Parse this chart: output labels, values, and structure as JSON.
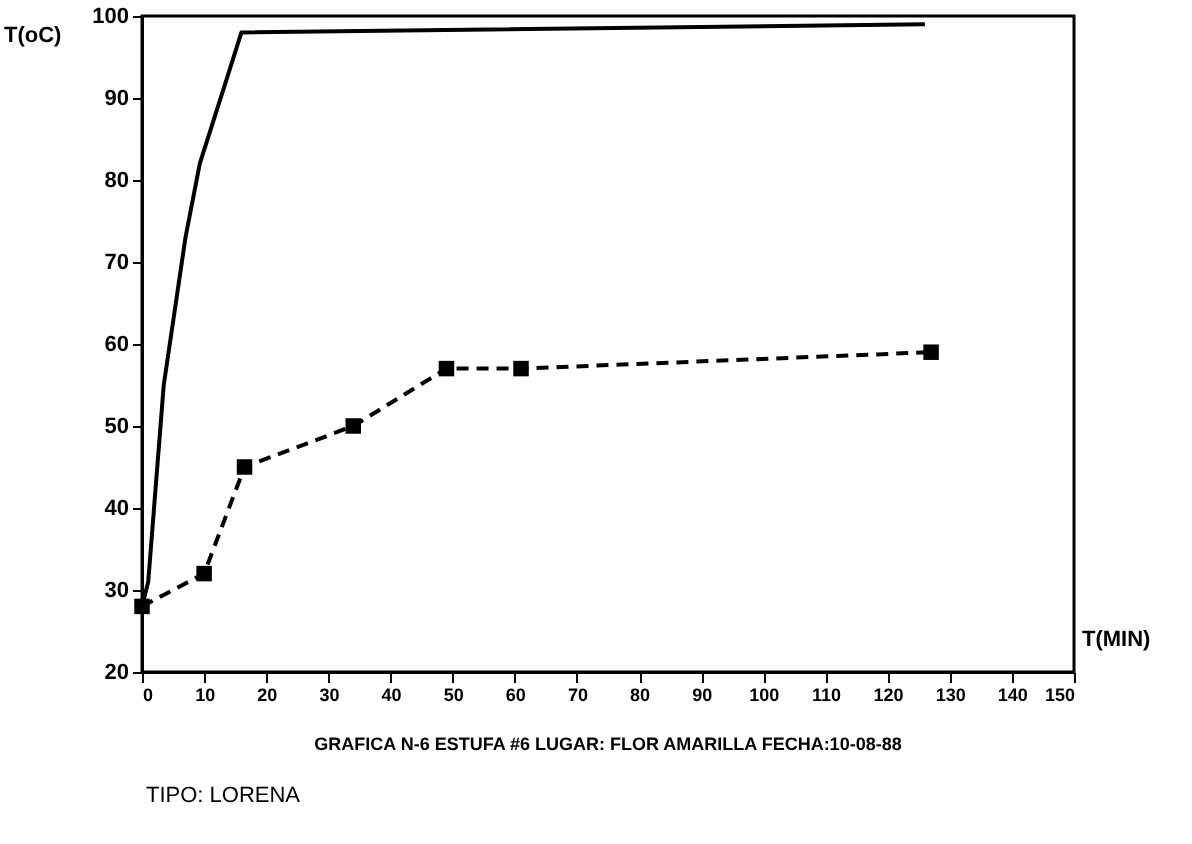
{
  "chart_data": {
    "type": "line",
    "xlabel": "T(MIN)",
    "ylabel": "T(oC)",
    "xlim": [
      0,
      150
    ],
    "xticks": [
      0,
      10,
      20,
      30,
      40,
      50,
      60,
      70,
      80,
      90,
      100,
      110,
      120,
      130,
      140,
      150
    ],
    "ylim": [
      20,
      100
    ],
    "yticks": [
      20,
      30,
      40,
      50,
      60,
      70,
      80,
      90,
      100
    ],
    "grid": false,
    "series": [
      {
        "color": "#000000",
        "marker": "none",
        "line_style": "solid",
        "x": [
          0,
          1,
          3.5,
          7,
          9.3,
          13.5,
          16,
          126
        ],
        "values": [
          28,
          31,
          55,
          73,
          82,
          92,
          98,
          99
        ]
      },
      {
        "color": "#000000",
        "marker": "square",
        "line_style": "dashed",
        "x": [
          0,
          10,
          16.5,
          34,
          49,
          61,
          127
        ],
        "values": [
          28,
          32,
          45,
          50,
          57,
          57,
          59
        ]
      }
    ],
    "annotations": [
      "GRAFICA N-6 ESTUFA #6   LUGAR: FLOR AMARILLA   FECHA:10-08-88",
      "TIPO: LORENA"
    ]
  }
}
